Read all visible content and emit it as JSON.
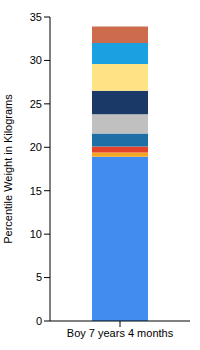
{
  "chart_data": {
    "type": "bar",
    "stacked": true,
    "y_label": "Percentile Weight in Kilograms",
    "categories": [
      "Boy 7 years 4 months"
    ],
    "ylim": [
      0,
      35
    ],
    "yticks": [
      0,
      5,
      10,
      15,
      20,
      25,
      30,
      35
    ],
    "series": [
      {
        "color": "#428BEF",
        "values": [
          18.9
        ]
      },
      {
        "color": "#F5A623",
        "values": [
          0.5
        ]
      },
      {
        "color": "#E2432A",
        "values": [
          0.7
        ]
      },
      {
        "color": "#1F6FA7",
        "values": [
          1.5
        ]
      },
      {
        "color": "#C0C0C0",
        "values": [
          2.2
        ]
      },
      {
        "color": "#1B3966",
        "values": [
          2.7
        ]
      },
      {
        "color": "#FFE384",
        "values": [
          3.1
        ]
      },
      {
        "color": "#1BA1E2",
        "values": [
          2.4
        ]
      },
      {
        "color": "#CD6B4D",
        "values": [
          1.9
        ]
      }
    ]
  }
}
